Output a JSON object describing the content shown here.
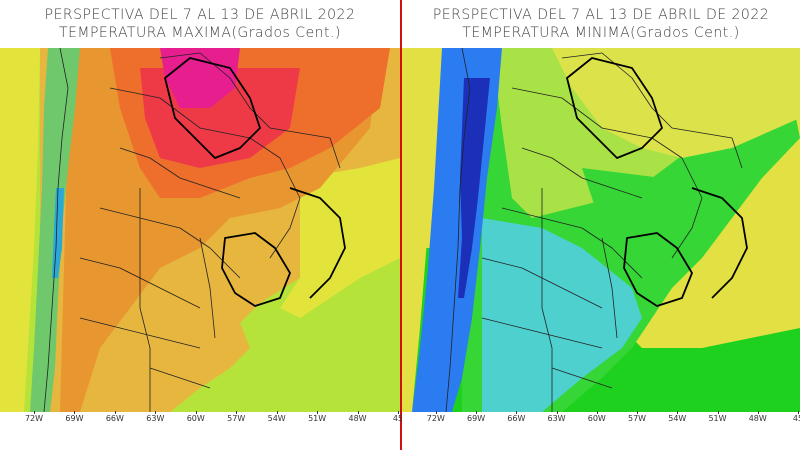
{
  "panels": [
    {
      "title_line1": "PERSPECTIVA DEL 7 AL 13 DE ABRIL 2022",
      "title_line2": "TEMPERATURA MAXIMA(Grados Cent.)",
      "variable": "max",
      "colors": {
        "ocean": "#b6e33a",
        "coast_band": "#e2e43c",
        "land_low": "#e7b63e",
        "land_mid": "#e8962f",
        "land_hot": "#ee6e2c",
        "land_very_hot": "#ee3a46",
        "land_extreme": "#e61e8e",
        "andes_cool": "#6fc86c",
        "andes_cold": "#2aa8d8"
      }
    },
    {
      "title_line1": "PERSPECTIVA DEL 7 AL 13 DE ABRIL DE 2022",
      "title_line2": "TEMPERATURA MINIMA(Grados Cent.)",
      "variable": "min",
      "colors": {
        "ocean_n": "#e2e043",
        "ocean_s": "#1fd11f",
        "land_green": "#35d635",
        "land_yellow_green": "#a8e246",
        "land_yellow": "#dce24a",
        "land_cyan": "#4ed0cf",
        "andes_blue": "#2a7cf0",
        "andes_dark": "#1c2fb8"
      }
    }
  ],
  "longitude_ticks": [
    "72W",
    "69W",
    "66W",
    "63W",
    "60W",
    "57W",
    "54W",
    "51W",
    "48W",
    "45"
  ]
}
